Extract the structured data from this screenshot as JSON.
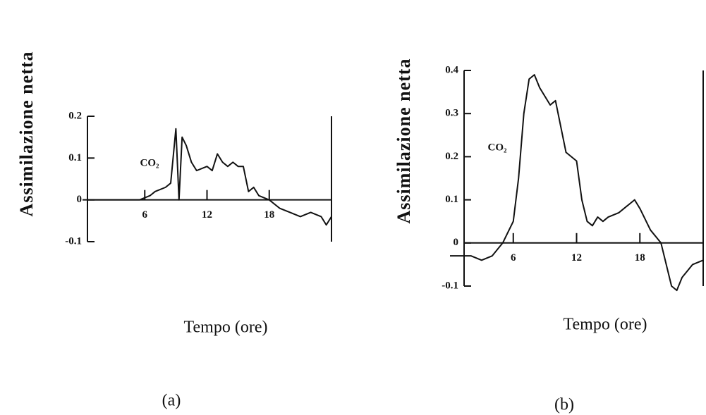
{
  "chart_data": [
    {
      "type": "line",
      "annotation": "CO₂",
      "ylabel": "Assimilazione netta",
      "xlabel": "Tempo (ore)",
      "caption": "(a)",
      "color": "#111111",
      "x": [
        0,
        2,
        4,
        5.5,
        6.5,
        7,
        8,
        8.5,
        9,
        9.3,
        9.6,
        10,
        10.5,
        11,
        12,
        12.5,
        13,
        13.5,
        14,
        14.5,
        15,
        15.5,
        16,
        16.5,
        17,
        18,
        19,
        20,
        21,
        22,
        23,
        23.5,
        24
      ],
      "values": [
        0,
        0,
        0,
        0,
        0.01,
        0.02,
        0.03,
        0.04,
        0.17,
        0.0,
        0.15,
        0.13,
        0.09,
        0.07,
        0.08,
        0.07,
        0.11,
        0.09,
        0.08,
        0.09,
        0.08,
        0.08,
        0.02,
        0.03,
        0.01,
        0,
        -0.02,
        -0.03,
        -0.04,
        -0.03,
        -0.04,
        -0.06,
        -0.04
      ],
      "xlim": [
        0,
        24
      ],
      "xticks": [
        6,
        12,
        18
      ],
      "ylim": [
        -0.1,
        0.2
      ],
      "yticks": [
        -0.1,
        0,
        0.1,
        0.2
      ]
    },
    {
      "type": "line",
      "annotation": "CO₂",
      "ylabel": "Assimilazione netta",
      "xlabel": "Tempo (ore)",
      "caption": "(b)",
      "color": "#111111",
      "x": [
        0,
        1,
        2,
        3,
        4,
        5,
        6,
        6.5,
        7,
        7.5,
        8,
        8.5,
        9,
        9.5,
        10,
        10.5,
        11,
        11.5,
        12,
        12.5,
        13,
        13.5,
        14,
        14.5,
        15,
        16,
        17,
        17.5,
        18,
        19,
        20,
        20.5,
        21,
        21.5,
        22,
        23,
        24
      ],
      "values": [
        -0.03,
        -0.03,
        -0.03,
        -0.04,
        -0.03,
        0,
        0.05,
        0.15,
        0.3,
        0.38,
        0.39,
        0.36,
        0.34,
        0.32,
        0.33,
        0.27,
        0.21,
        0.2,
        0.19,
        0.1,
        0.05,
        0.04,
        0.06,
        0.05,
        0.06,
        0.07,
        0.09,
        0.1,
        0.08,
        0.03,
        0,
        -0.05,
        -0.1,
        -0.11,
        -0.08,
        -0.05,
        -0.04
      ],
      "xlim": [
        0,
        24
      ],
      "xticks": [
        6,
        12,
        18
      ],
      "ylim": [
        -0.1,
        0.4
      ],
      "yticks": [
        -0.1,
        0,
        0.1,
        0.2,
        0.3,
        0.4
      ]
    }
  ]
}
